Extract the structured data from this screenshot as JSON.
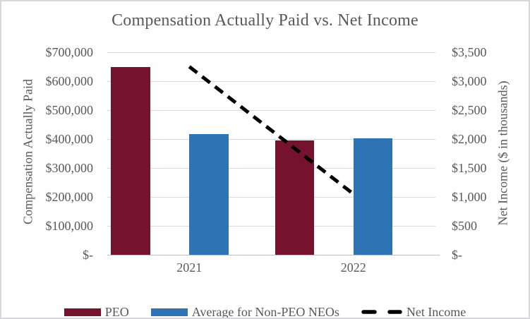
{
  "title": "Compensation Actually Paid vs. Net Income",
  "chart_data": {
    "type": "combo-bar-line",
    "title": "Compensation Actually Paid vs. Net Income",
    "categories": [
      "2021",
      "2022"
    ],
    "series": [
      {
        "key": "peo",
        "name": "PEO",
        "type": "bar",
        "axis": "left",
        "color": "#75132F",
        "values": [
          650000,
          395000
        ]
      },
      {
        "key": "non-peo-neos",
        "name": "Average for Non-PEO NEOs",
        "type": "bar",
        "axis": "left",
        "color": "#2E74B5",
        "values": [
          417000,
          403000
        ]
      },
      {
        "key": "net-income",
        "name": "Net Income",
        "type": "dashed-line",
        "axis": "right",
        "color": "#000000",
        "values": [
          3250,
          1050
        ]
      }
    ],
    "left_axis": {
      "title": "Compensation Actually Paid",
      "min": 0,
      "max": 700000,
      "step": 100000,
      "tick_labels_top_to_bottom": [
        "$700,000",
        "$600,000",
        "$500,000",
        "$400,000",
        "$300,000",
        "$200,000",
        "$100,000",
        "$-"
      ]
    },
    "right_axis": {
      "title": "Net Income ($ in thousands)",
      "min": 0,
      "max": 3500,
      "step": 500,
      "tick_labels_top_to_bottom": [
        "$3,500",
        "$3,000",
        "$2,500",
        "$2,000",
        "$1,500",
        "$1,000",
        "$500",
        "$-"
      ]
    },
    "grid": true,
    "legend_position": "bottom",
    "colors": {
      "text": "#595959",
      "gridline": "#D9D9D9",
      "axis_line": "#BFBFBF",
      "border": "#D8D8DA",
      "background": "#FFFFFF"
    }
  }
}
